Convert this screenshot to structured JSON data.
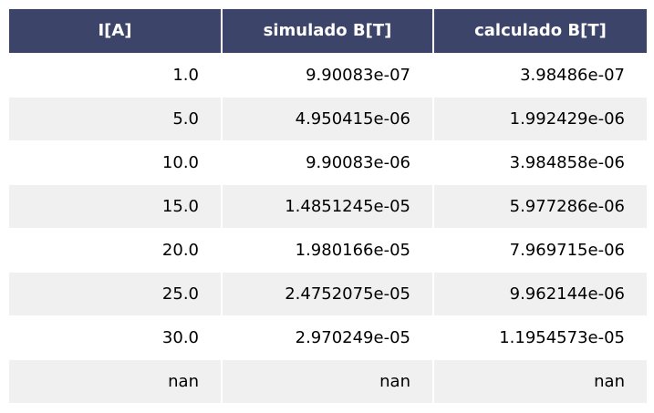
{
  "chart_data": {
    "type": "table",
    "columns": [
      "I[A]",
      "simulado B[T]",
      "calculado B[T]"
    ],
    "rows": [
      [
        "1.0",
        "9.90083e-07",
        "3.98486e-07"
      ],
      [
        "5.0",
        "4.950415e-06",
        "1.992429e-06"
      ],
      [
        "10.0",
        "9.90083e-06",
        "3.984858e-06"
      ],
      [
        "15.0",
        "1.4851245e-05",
        "5.977286e-06"
      ],
      [
        "20.0",
        "1.980166e-05",
        "7.969715e-06"
      ],
      [
        "25.0",
        "2.4752075e-05",
        "9.962144e-06"
      ],
      [
        "30.0",
        "2.970249e-05",
        "1.1954573e-05"
      ],
      [
        "nan",
        "nan",
        "nan"
      ]
    ]
  },
  "colors": {
    "header_background": "#3d4469",
    "header_text": "#ffffff",
    "row_odd": "#ffffff",
    "row_even": "#f0f0f0",
    "cell_text": "#000000"
  }
}
